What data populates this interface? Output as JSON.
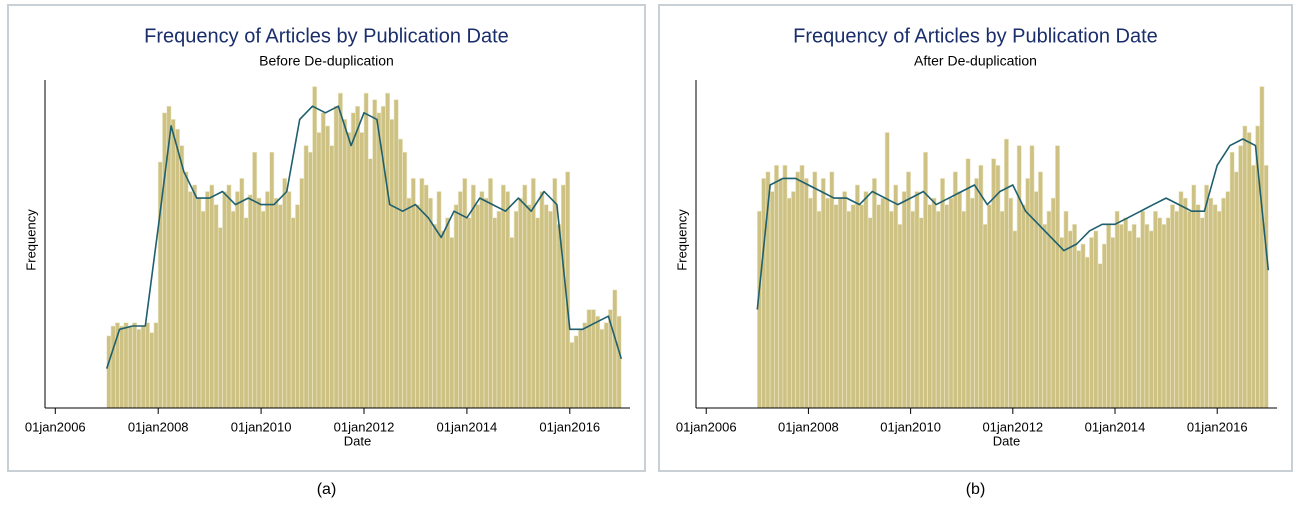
{
  "chart_data": [
    {
      "type": "histogram",
      "title": "Frequency of Articles by Publication Date",
      "subtitle": "Before De-duplication",
      "x_label": "Date",
      "y_label": "Frequency",
      "label": "(a)",
      "bins": [
        2007,
        2007.083,
        2007.167,
        2007.25,
        2007.333,
        2007.417,
        2007.5,
        2007.583,
        2007.667,
        2007.75,
        2007.833,
        2007.917,
        2008,
        2008.083,
        2008.167,
        2008.25,
        2008.333,
        2008.417,
        2008.5,
        2008.583,
        2008.667,
        2008.75,
        2008.833,
        2008.917,
        2009,
        2009.083,
        2009.167,
        2009.25,
        2009.333,
        2009.417,
        2009.5,
        2009.583,
        2009.667,
        2009.75,
        2009.833,
        2009.917,
        2010,
        2010.083,
        2010.167,
        2010.25,
        2010.333,
        2010.417,
        2010.5,
        2010.583,
        2010.667,
        2010.75,
        2010.833,
        2010.917,
        2011,
        2011.083,
        2011.167,
        2011.25,
        2011.333,
        2011.417,
        2011.5,
        2011.583,
        2011.667,
        2011.75,
        2011.833,
        2011.917,
        2012,
        2012.083,
        2012.167,
        2012.25,
        2012.333,
        2012.417,
        2012.5,
        2012.583,
        2012.667,
        2012.75,
        2012.833,
        2012.917,
        2013,
        2013.083,
        2013.167,
        2013.25,
        2013.333,
        2013.417,
        2013.5,
        2013.583,
        2013.667,
        2013.75,
        2013.833,
        2013.917,
        2014,
        2014.083,
        2014.167,
        2014.25,
        2014.333,
        2014.417,
        2014.5,
        2014.583,
        2014.667,
        2014.75,
        2014.833,
        2014.917,
        2015,
        2015.083,
        2015.167,
        2015.25,
        2015.333,
        2015.417,
        2015.5,
        2015.583,
        2015.667,
        2015.75,
        2015.833,
        2015.917,
        2016,
        2016.083,
        2016.167,
        2016.25,
        2016.333,
        2016.417,
        2016.5,
        2016.583,
        2016.667,
        2016.75,
        2016.833,
        2016.917,
        2017
      ],
      "values": [
        22,
        25,
        26,
        25,
        26,
        25,
        26,
        24,
        25,
        26,
        23,
        26,
        75,
        90,
        92,
        88,
        85,
        80,
        72,
        66,
        68,
        64,
        60,
        66,
        68,
        62,
        55,
        66,
        68,
        60,
        66,
        70,
        58,
        65,
        78,
        64,
        60,
        66,
        78,
        64,
        62,
        70,
        66,
        58,
        62,
        70,
        80,
        78,
        98,
        84,
        90,
        86,
        80,
        92,
        96,
        88,
        84,
        90,
        92,
        84,
        96,
        76,
        94,
        90,
        92,
        96,
        88,
        94,
        82,
        78,
        64,
        70,
        62,
        70,
        68,
        64,
        56,
        66,
        54,
        58,
        52,
        62,
        66,
        70,
        58,
        68,
        62,
        66,
        64,
        70,
        58,
        60,
        68,
        66,
        52,
        60,
        64,
        68,
        62,
        70,
        58,
        66,
        62,
        60,
        70,
        56,
        68,
        72,
        20,
        22,
        24,
        26,
        30,
        30,
        28,
        24,
        26,
        30,
        36,
        28
      ],
      "color": "#cdc283",
      "density": {
        "color": "#1f5f6e",
        "x": [
          2007,
          2007.25,
          2007.5,
          2007.75,
          2008,
          2008.25,
          2008.5,
          2008.75,
          2009,
          2009.25,
          2009.5,
          2009.75,
          2010,
          2010.25,
          2010.5,
          2010.75,
          2011,
          2011.25,
          2011.5,
          2011.75,
          2012,
          2012.25,
          2012.5,
          2012.75,
          2013,
          2013.25,
          2013.5,
          2013.75,
          2014,
          2014.25,
          2014.5,
          2014.75,
          2015,
          2015.25,
          2015.5,
          2015.75,
          2016,
          2016.25,
          2016.5,
          2016.75,
          2017
        ],
        "values": [
          12,
          24,
          25,
          25,
          55,
          86,
          72,
          64,
          64,
          66,
          62,
          64,
          62,
          62,
          66,
          88,
          92,
          90,
          92,
          80,
          90,
          88,
          62,
          60,
          62,
          58,
          52,
          60,
          58,
          64,
          62,
          60,
          64,
          60,
          66,
          62,
          24,
          24,
          26,
          28,
          15
        ]
      },
      "xlim": [
        2005.8,
        2017.17
      ],
      "ylim": [
        0,
        100
      ],
      "xticks": [
        {
          "value": 2006,
          "label": "01jan2006"
        },
        {
          "value": 2008,
          "label": "01jan2008"
        },
        {
          "value": 2010,
          "label": "01jan2010"
        },
        {
          "value": 2012,
          "label": "01jan2012"
        },
        {
          "value": 2014,
          "label": "01jan2014"
        },
        {
          "value": 2016,
          "label": "01jan2016"
        }
      ]
    },
    {
      "type": "histogram",
      "title": "Frequency of Articles by Publication Date",
      "subtitle": "After De-duplication",
      "x_label": "Date",
      "y_label": "Frequency",
      "label": "(b)",
      "bins": [
        2007,
        2007.083,
        2007.167,
        2007.25,
        2007.333,
        2007.417,
        2007.5,
        2007.583,
        2007.667,
        2007.75,
        2007.833,
        2007.917,
        2008,
        2008.083,
        2008.167,
        2008.25,
        2008.333,
        2008.417,
        2008.5,
        2008.583,
        2008.667,
        2008.75,
        2008.833,
        2008.917,
        2009,
        2009.083,
        2009.167,
        2009.25,
        2009.333,
        2009.417,
        2009.5,
        2009.583,
        2009.667,
        2009.75,
        2009.833,
        2009.917,
        2010,
        2010.083,
        2010.167,
        2010.25,
        2010.333,
        2010.417,
        2010.5,
        2010.583,
        2010.667,
        2010.75,
        2010.833,
        2010.917,
        2011,
        2011.083,
        2011.167,
        2011.25,
        2011.333,
        2011.417,
        2011.5,
        2011.583,
        2011.667,
        2011.75,
        2011.833,
        2011.917,
        2012,
        2012.083,
        2012.167,
        2012.25,
        2012.333,
        2012.417,
        2012.5,
        2012.583,
        2012.667,
        2012.75,
        2012.833,
        2012.917,
        2013,
        2013.083,
        2013.167,
        2013.25,
        2013.333,
        2013.417,
        2013.5,
        2013.583,
        2013.667,
        2013.75,
        2013.833,
        2013.917,
        2014,
        2014.083,
        2014.167,
        2014.25,
        2014.333,
        2014.417,
        2014.5,
        2014.583,
        2014.667,
        2014.75,
        2014.833,
        2014.917,
        2015,
        2015.083,
        2015.167,
        2015.25,
        2015.333,
        2015.417,
        2015.5,
        2015.583,
        2015.667,
        2015.75,
        2015.833,
        2015.917,
        2016,
        2016.083,
        2016.167,
        2016.25,
        2016.333,
        2016.417,
        2016.5,
        2016.583,
        2016.667,
        2016.75,
        2016.833,
        2016.917,
        2017
      ],
      "values": [
        60,
        70,
        72,
        66,
        74,
        70,
        74,
        64,
        66,
        72,
        74,
        70,
        64,
        72,
        60,
        70,
        64,
        72,
        62,
        64,
        66,
        60,
        62,
        68,
        62,
        66,
        58,
        70,
        62,
        64,
        84,
        60,
        68,
        56,
        66,
        72,
        60,
        66,
        58,
        78,
        62,
        64,
        60,
        70,
        62,
        64,
        72,
        66,
        60,
        76,
        64,
        70,
        74,
        56,
        62,
        76,
        74,
        60,
        82,
        64,
        54,
        80,
        62,
        70,
        80,
        66,
        72,
        56,
        60,
        64,
        80,
        52,
        60,
        54,
        56,
        48,
        50,
        46,
        52,
        54,
        44,
        50,
        56,
        52,
        60,
        56,
        58,
        54,
        56,
        52,
        60,
        56,
        54,
        60,
        58,
        56,
        58,
        62,
        60,
        66,
        64,
        60,
        68,
        62,
        58,
        68,
        64,
        62,
        60,
        64,
        66,
        78,
        72,
        80,
        86,
        84,
        74,
        86,
        98,
        74
      ],
      "color": "#cdc283",
      "density": {
        "color": "#1f5f6e",
        "x": [
          2007,
          2007.25,
          2007.5,
          2007.75,
          2008,
          2008.25,
          2008.5,
          2008.75,
          2009,
          2009.25,
          2009.5,
          2009.75,
          2010,
          2010.25,
          2010.5,
          2010.75,
          2011,
          2011.25,
          2011.5,
          2011.75,
          2012,
          2012.25,
          2012.5,
          2012.75,
          2013,
          2013.25,
          2013.5,
          2013.75,
          2014,
          2014.25,
          2014.5,
          2014.75,
          2015,
          2015.25,
          2015.5,
          2015.75,
          2016,
          2016.25,
          2016.5,
          2016.75,
          2017
        ],
        "values": [
          30,
          68,
          70,
          70,
          68,
          66,
          64,
          64,
          62,
          66,
          64,
          62,
          64,
          66,
          62,
          64,
          66,
          68,
          62,
          66,
          68,
          60,
          56,
          52,
          48,
          50,
          54,
          56,
          56,
          58,
          60,
          62,
          64,
          62,
          60,
          60,
          74,
          80,
          82,
          80,
          42
        ]
      },
      "xlim": [
        2005.8,
        2017.17
      ],
      "ylim": [
        0,
        100
      ],
      "xticks": [
        {
          "value": 2006,
          "label": "01jan2006"
        },
        {
          "value": 2008,
          "label": "01jan2008"
        },
        {
          "value": 2010,
          "label": "01jan2010"
        },
        {
          "value": 2012,
          "label": "01jan2012"
        },
        {
          "value": 2014,
          "label": "01jan2014"
        },
        {
          "value": 2016,
          "label": "01jan2016"
        }
      ]
    }
  ]
}
